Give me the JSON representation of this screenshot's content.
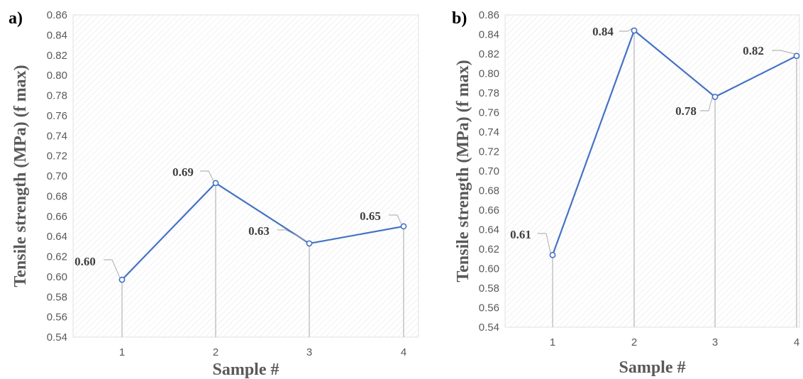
{
  "colors": {
    "line": "#4472C4",
    "drop_line": "#a6a6a6",
    "leader": "#a6a6a6",
    "hatch": "#e4e4e4",
    "text": "#595959"
  },
  "chart_data": [
    {
      "type": "line",
      "panel_label": "a)",
      "xlabel": "Sample #",
      "ylabel": "Tensile strength (MPa) (f max)",
      "categories": [
        "1",
        "2",
        "3",
        "4"
      ],
      "values": [
        0.597,
        0.693,
        0.633,
        0.65
      ],
      "data_labels": [
        "0.60",
        "0.69",
        "0.63",
        "0.65"
      ],
      "ylim": [
        0.54,
        0.86
      ],
      "yticks": [
        "0.54",
        "0.56",
        "0.58",
        "0.60",
        "0.62",
        "0.64",
        "0.66",
        "0.68",
        "0.70",
        "0.72",
        "0.74",
        "0.76",
        "0.78",
        "0.80",
        "0.82",
        "0.84",
        "0.86"
      ],
      "markers": "open-circle",
      "drop_lines": true,
      "grid": false,
      "legend": "none"
    },
    {
      "type": "line",
      "panel_label": "b)",
      "xlabel": "Sample #",
      "ylabel": "Tensile strength (MPa) (f max)",
      "categories": [
        "1",
        "2",
        "3",
        "4"
      ],
      "values": [
        0.614,
        0.844,
        0.776,
        0.818
      ],
      "data_labels": [
        "0.61",
        "0.84",
        "0.78",
        "0.82"
      ],
      "ylim": [
        0.54,
        0.86
      ],
      "yticks": [
        "0.54",
        "0.56",
        "0.58",
        "0.60",
        "0.62",
        "0.64",
        "0.66",
        "0.68",
        "0.70",
        "0.72",
        "0.74",
        "0.76",
        "0.78",
        "0.80",
        "0.82",
        "0.84",
        "0.86"
      ],
      "markers": "open-circle",
      "drop_lines": true,
      "grid": false,
      "legend": "none"
    }
  ]
}
